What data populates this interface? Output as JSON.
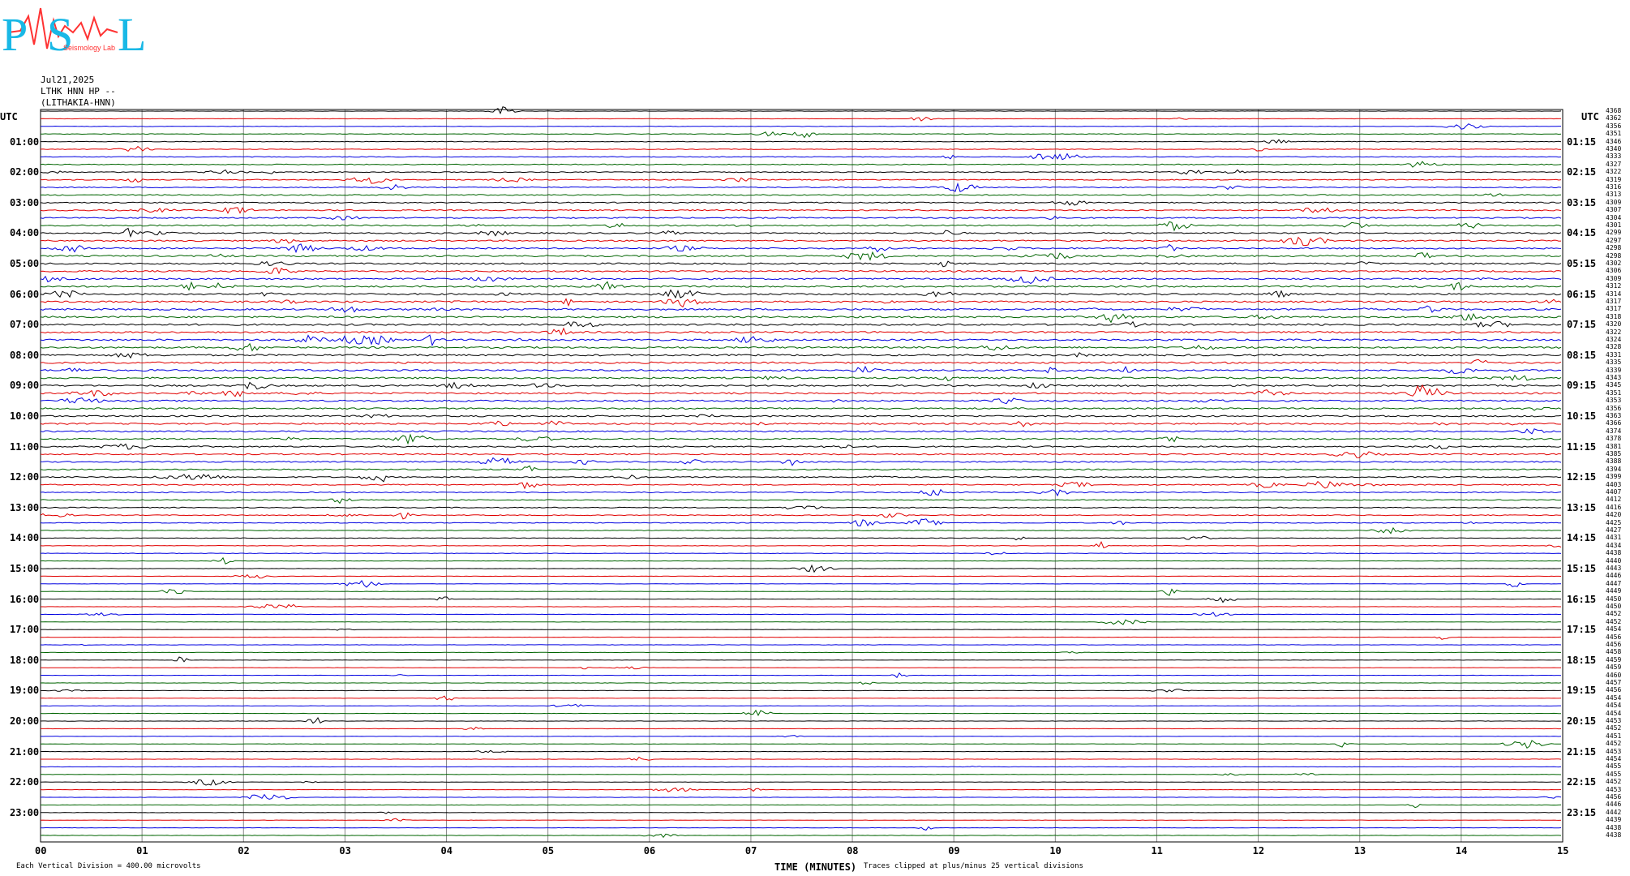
{
  "header": {
    "logo_letters": [
      "P",
      "S",
      "L"
    ],
    "logo_text": "Seismology Lab",
    "date": "Jul21,2025",
    "station": "LTHK HNN HP --",
    "location": "(LITHAKIA-HNN)",
    "utc_left": "UTC",
    "utc_right": "UTC"
  },
  "colors": {
    "black": "#000000",
    "red": "#e00000",
    "blue": "#0000e0",
    "green": "#006400",
    "grid": "#888888",
    "logo_cyan": "#19b8e6",
    "logo_red": "#ff3333"
  },
  "chart_data": {
    "type": "helicorder",
    "x_range": [
      0,
      15
    ],
    "x_ticks": [
      "00",
      "01",
      "02",
      "03",
      "04",
      "05",
      "06",
      "07",
      "08",
      "09",
      "10",
      "11",
      "12",
      "13",
      "14",
      "15"
    ],
    "xlabel": "TIME (MINUTES)",
    "left_hours": [
      "01:00",
      "02:00",
      "03:00",
      "04:00",
      "05:00",
      "06:00",
      "07:00",
      "08:00",
      "09:00",
      "10:00",
      "11:00",
      "12:00",
      "13:00",
      "14:00",
      "15:00",
      "16:00",
      "17:00",
      "18:00",
      "19:00",
      "20:00",
      "21:00",
      "22:00",
      "23:00"
    ],
    "right_hours": [
      "01:15",
      "02:15",
      "03:15",
      "04:15",
      "05:15",
      "06:15",
      "07:15",
      "08:15",
      "09:15",
      "10:15",
      "11:15",
      "12:15",
      "13:15",
      "14:15",
      "15:15",
      "16:15",
      "17:15",
      "18:15",
      "19:15",
      "20:15",
      "21:15",
      "22:15",
      "23:15"
    ],
    "trace_colors": [
      "black",
      "red",
      "blue",
      "green"
    ],
    "trace_count": 96,
    "right_numbers": [
      "4368",
      "4362",
      "4356",
      "4351",
      "4346",
      "4340",
      "4333",
      "4327",
      "4322",
      "4319",
      "4316",
      "4313",
      "4309",
      "4307",
      "4304",
      "4301",
      "4299",
      "4297",
      "4298",
      "4298",
      "4302",
      "4306",
      "4309",
      "4312",
      "4314",
      "4317",
      "4317",
      "4318",
      "4320",
      "4322",
      "4324",
      "4328",
      "4331",
      "4335",
      "4339",
      "4343",
      "4345",
      "4351",
      "4353",
      "4356",
      "4363",
      "4366",
      "4374",
      "4378",
      "4381",
      "4385",
      "4388",
      "4394",
      "4399",
      "4403",
      "4407",
      "4412",
      "4416",
      "4420",
      "4425",
      "4427",
      "4431",
      "4434",
      "4438",
      "4440",
      "4443",
      "4446",
      "4447",
      "4449",
      "4450",
      "4450",
      "4452",
      "4452",
      "4454",
      "4456",
      "4456",
      "4458",
      "4459",
      "4459",
      "4460",
      "4457",
      "4456",
      "4454",
      "4454",
      "4454",
      "4453",
      "4452",
      "4451",
      "4452",
      "4453",
      "4454",
      "4455",
      "4455",
      "4452",
      "4453",
      "4456",
      "4446",
      "4442",
      "4439",
      "4438",
      "4438"
    ]
  },
  "footer": {
    "scale_note": "Each Vertical Division =  400.00 microvolts",
    "clip_note": "Traces clipped at plus/minus 25 vertical divisions"
  }
}
